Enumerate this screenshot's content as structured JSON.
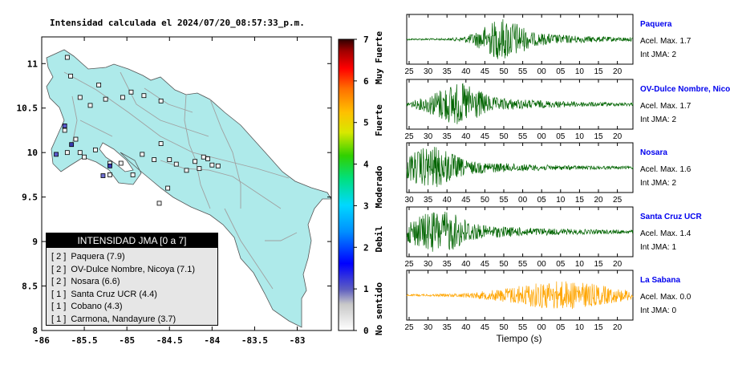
{
  "map": {
    "title": "Intensidad calculada el 2024/07/20_08:57:33_p.m.",
    "x_ticks": [
      "-86",
      "-85.5",
      "-85",
      "-84.5",
      "-84",
      "-83.5",
      "-83"
    ],
    "y_ticks": [
      "11",
      "10.5",
      "10",
      "9.5",
      "9",
      "8.5",
      "8"
    ],
    "lon_range": [
      -86,
      -82.6
    ],
    "lat_range": [
      8,
      11.3
    ],
    "land_color": "#aeeaea",
    "stations": [
      [
        -85.7,
        11.07
      ],
      [
        -85.66,
        10.86
      ],
      [
        -85.33,
        10.76
      ],
      [
        -85.55,
        10.62
      ],
      [
        -85.43,
        10.53
      ],
      [
        -85.25,
        10.6
      ],
      [
        -85.05,
        10.62
      ],
      [
        -84.95,
        10.68
      ],
      [
        -84.8,
        10.64
      ],
      [
        -84.6,
        10.58
      ],
      [
        -85.73,
        10.25
      ],
      [
        -85.6,
        10.15
      ],
      [
        -85.7,
        10.0
      ],
      [
        -85.55,
        10.0
      ],
      [
        -85.5,
        9.95
      ],
      [
        -85.37,
        10.03
      ],
      [
        -85.2,
        9.88
      ],
      [
        -85.07,
        9.88
      ],
      [
        -84.93,
        9.75
      ],
      [
        -84.82,
        9.98
      ],
      [
        -84.68,
        9.92
      ],
      [
        -84.6,
        10.1
      ],
      [
        -84.5,
        9.92
      ],
      [
        -84.42,
        9.87
      ],
      [
        -84.3,
        9.8
      ],
      [
        -84.2,
        9.9
      ],
      [
        -84.1,
        9.95
      ],
      [
        -84.05,
        9.93
      ],
      [
        -84.0,
        9.86
      ],
      [
        -84.15,
        9.82
      ],
      [
        -83.93,
        9.85
      ],
      [
        -84.52,
        9.6
      ],
      [
        -84.62,
        9.43
      ],
      [
        -85.2,
        9.75
      ]
    ],
    "colored_stations": [
      {
        "pos": [
          -85.73,
          10.3
        ],
        "color": "#5a5acd"
      },
      {
        "pos": [
          -85.83,
          9.98
        ],
        "color": "#5a5acd"
      },
      {
        "pos": [
          -85.65,
          10.09
        ],
        "color": "#3a3ab0"
      },
      {
        "pos": [
          -85.2,
          9.85
        ],
        "color": "#3a3ab0"
      },
      {
        "pos": [
          -85.28,
          9.74
        ],
        "color": "#7070d0"
      }
    ]
  },
  "colorbar": {
    "ticks": [
      "0",
      "1",
      "2",
      "3",
      "4",
      "5",
      "6",
      "7"
    ],
    "labels": [
      "No sentido",
      "Debil",
      "Moderado",
      "Fuerte",
      "Muy Fuerte"
    ]
  },
  "legend": {
    "title": "INTENSIDAD JMA [0 a 7]",
    "items": [
      {
        "level": "[ 2 ]",
        "station": "Paquera (7.9)"
      },
      {
        "level": "[ 2 ]",
        "station": "OV-Dulce Nombre, Nicoya (7.1)"
      },
      {
        "level": "[ 2 ]",
        "station": "Nosara (6.6)"
      },
      {
        "level": "[ 1 ]",
        "station": "Santa Cruz UCR (4.4)"
      },
      {
        "level": "[ 1 ]",
        "station": "Cobano (4.3)"
      },
      {
        "level": "[ 1 ]",
        "station": "Carmona, Nandayure (3.7)"
      }
    ]
  },
  "chart_data": {
    "type": "line",
    "xlabel": "Tiempo (s)",
    "traces": [
      {
        "name": "Paquera",
        "accel": "Acel. Max. 1.7",
        "jma": "Int JMA: 2",
        "ticks": [
          "25",
          "30",
          "35",
          "40",
          "45",
          "50",
          "55",
          "00",
          "05",
          "10",
          "15",
          "20"
        ],
        "first_tick": 25,
        "color": "#006400",
        "burst_center": 50,
        "burst_width": 5,
        "amp": 0.9
      },
      {
        "name": "OV-Dulce Nombre, Nico",
        "accel": "Acel. Max. 1.7",
        "jma": "Int JMA: 2",
        "ticks": [
          "25",
          "30",
          "35",
          "40",
          "45",
          "50",
          "55",
          "00",
          "05",
          "10",
          "15",
          "20"
        ],
        "first_tick": 25,
        "color": "#006400",
        "burst_center": 38,
        "burst_width": 6,
        "amp": 0.9
      },
      {
        "name": "Nosara",
        "accel": "Acel. Max. 1.6",
        "jma": "Int JMA: 2",
        "ticks": [
          "30",
          "35",
          "40",
          "45",
          "50",
          "55",
          "00",
          "05",
          "10",
          "15",
          "20",
          "25"
        ],
        "first_tick": 30,
        "color": "#006400",
        "burst_center": 36,
        "burst_width": 6,
        "amp": 0.9
      },
      {
        "name": "Santa Cruz UCR",
        "accel": "Acel. Max. 1.4",
        "jma": "Int JMA: 1",
        "ticks": [
          "25",
          "30",
          "35",
          "40",
          "45",
          "50",
          "55",
          "00",
          "05",
          "10",
          "15",
          "20"
        ],
        "first_tick": 25,
        "color": "#006400",
        "burst_center": 33,
        "burst_width": 7,
        "amp": 0.9
      },
      {
        "name": "La Sabana",
        "accel": "Acel. Max. 0.0",
        "jma": "Int JMA: 0",
        "ticks": [
          "25",
          "30",
          "35",
          "40",
          "45",
          "50",
          "55",
          "00",
          "05",
          "10",
          "15",
          "20"
        ],
        "first_tick": 25,
        "color": "#ffa500",
        "burst_center": 65,
        "burst_width": 12,
        "amp": 0.6
      }
    ]
  }
}
